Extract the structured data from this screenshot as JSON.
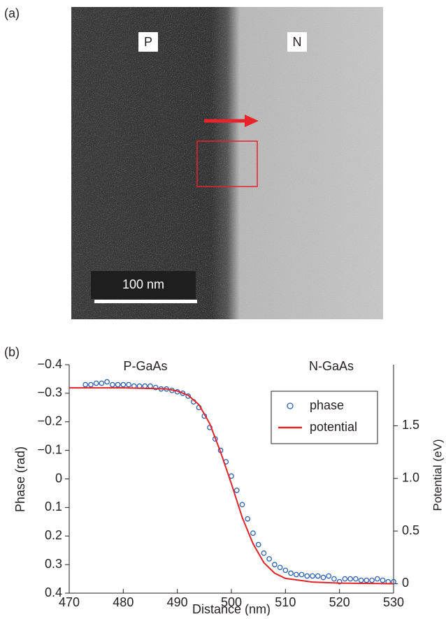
{
  "figure_a": {
    "panel_label": "(a)",
    "left_label": "P",
    "right_label": "N",
    "scale_bar": "100 nm"
  },
  "chart_data": {
    "type": "line",
    "panel_label": "(b)",
    "x_label": "Distance (nm)",
    "y_label": "Phase (rad)",
    "y2_label": "Potential (eV)",
    "annotations": [
      "P-GaAs",
      "N-GaAs"
    ],
    "xlim": [
      470,
      530
    ],
    "xticks": [
      470,
      480,
      490,
      500,
      510,
      520,
      530
    ],
    "ylim": [
      -0.4,
      0.4
    ],
    "y_inverted": true,
    "yticks": [
      {
        "value": -0.4,
        "label": "−0.4"
      },
      {
        "value": -0.3,
        "label": "−0.3"
      },
      {
        "value": -0.2,
        "label": "−0.2"
      },
      {
        "value": -0.1,
        "label": "−0.1"
      },
      0,
      0.1,
      0.2,
      0.3,
      0.4
    ],
    "y2lim": [
      -0.09,
      2.08
    ],
    "y2ticks": [
      0,
      0.5,
      {
        "value": 1,
        "label": "1.0"
      },
      1.5
    ],
    "legend": "upper right",
    "series": [
      {
        "name": "phase",
        "color": "#2b5fae",
        "style": "markers",
        "x": [
          473,
          474,
          475,
          476,
          477,
          478,
          479,
          480,
          481,
          482,
          483,
          484,
          485,
          486,
          487,
          488,
          489,
          490,
          491,
          492,
          493,
          494,
          495,
          496,
          497,
          498,
          499,
          500,
          501,
          502,
          503,
          504,
          505,
          506,
          507,
          508,
          509,
          510,
          511,
          512,
          513,
          514,
          515,
          516,
          517,
          518,
          519,
          520,
          521,
          522,
          523,
          524,
          525,
          526,
          527,
          528,
          529,
          530
        ],
        "values": [
          -0.33,
          -0.33,
          -0.335,
          -0.335,
          -0.34,
          -0.33,
          -0.33,
          -0.33,
          -0.33,
          -0.325,
          -0.325,
          -0.325,
          -0.325,
          -0.32,
          -0.315,
          -0.315,
          -0.31,
          -0.305,
          -0.3,
          -0.29,
          -0.27,
          -0.25,
          -0.22,
          -0.18,
          -0.14,
          -0.1,
          -0.06,
          -0.01,
          0.04,
          0.09,
          0.14,
          0.19,
          0.23,
          0.26,
          0.28,
          0.3,
          0.31,
          0.32,
          0.33,
          0.335,
          0.335,
          0.34,
          0.34,
          0.34,
          0.345,
          0.34,
          0.35,
          0.36,
          0.35,
          0.35,
          0.35,
          0.355,
          0.355,
          0.355,
          0.35,
          0.355,
          0.36,
          0.36
        ]
      },
      {
        "name": "potential",
        "color": "#e0242a",
        "style": "line",
        "axis": "y2",
        "x": [
          470,
          480,
          488,
          490,
          492,
          494,
          496,
          498,
          500,
          502,
          504,
          506,
          508,
          510,
          515,
          520,
          530
        ],
        "values": [
          1.86,
          1.86,
          1.85,
          1.83,
          1.79,
          1.7,
          1.52,
          1.25,
          0.95,
          0.63,
          0.38,
          0.2,
          0.1,
          0.05,
          0.015,
          0.005,
          0
        ]
      }
    ]
  }
}
